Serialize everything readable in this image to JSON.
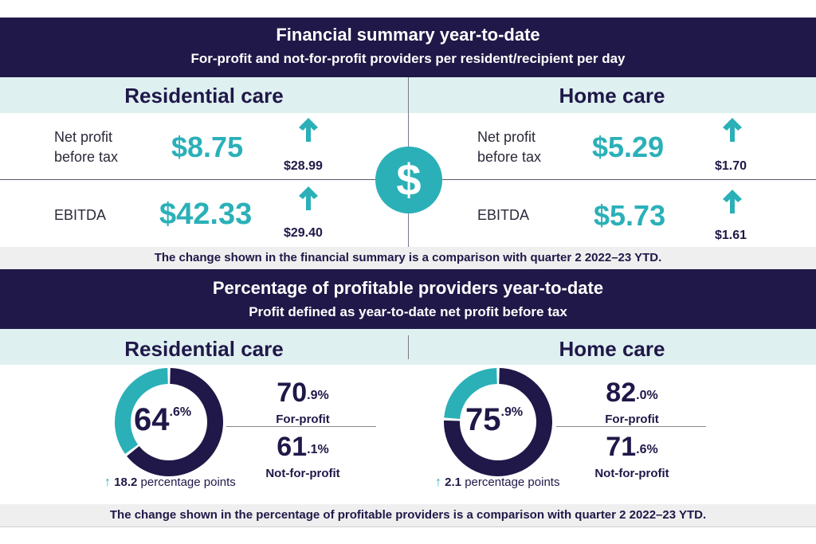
{
  "financial_summary": {
    "title": "Financial summary year-to-date",
    "subtitle": "For-profit and not-for-profit providers per resident/recipient per day",
    "residential": {
      "heading": "Residential care",
      "net_profit": {
        "label_line1": "Net profit",
        "label_line2": "before tax",
        "value": "$8.75",
        "change": "$28.99",
        "direction": "up"
      },
      "ebitda": {
        "label": "EBITDA",
        "value": "$42.33",
        "change": "$29.40",
        "direction": "up"
      }
    },
    "home": {
      "heading": "Home care",
      "net_profit": {
        "label_line1": "Net profit",
        "label_line2": "before tax",
        "value": "$5.29",
        "change": "$1.70",
        "direction": "up"
      },
      "ebitda": {
        "label": "EBITDA",
        "value": "$5.73",
        "change": "$1.61",
        "direction": "up"
      }
    },
    "center_icon": "dollar-icon",
    "note": "The change shown in the financial summary is a comparison with quarter 2 2022–23 YTD."
  },
  "profitable_providers": {
    "title": "Percentage of profitable providers year-to-date",
    "subtitle": "Profit defined as year-to-date net profit before tax",
    "residential": {
      "heading": "Residential care",
      "overall_whole": "64",
      "overall_decimal": ".6%",
      "overall_percent": 64.6,
      "for_profit_whole": "70",
      "for_profit_decimal": ".9%",
      "for_profit_label": "For-profit",
      "not_for_profit_whole": "61",
      "not_for_profit_decimal": ".1%",
      "not_for_profit_label": "Not-for-profit",
      "change_value": "18.2",
      "change_text": "percentage points",
      "direction": "up"
    },
    "home": {
      "heading": "Home care",
      "overall_whole": "75",
      "overall_decimal": ".9%",
      "overall_percent": 75.9,
      "for_profit_whole": "82",
      "for_profit_decimal": ".0%",
      "for_profit_label": "For-profit",
      "not_for_profit_whole": "71",
      "not_for_profit_decimal": ".6%",
      "not_for_profit_label": "Not-for-profit",
      "change_value": "2.1",
      "change_text": "percentage points",
      "direction": "up"
    },
    "note": "The change shown in the percentage of profitable providers is a comparison with quarter 2 2022–23 YTD."
  },
  "colors": {
    "navy": "#201848",
    "teal": "#2bb0b8",
    "light_teal_bg": "#dff0f1",
    "note_bg": "#efefef"
  }
}
